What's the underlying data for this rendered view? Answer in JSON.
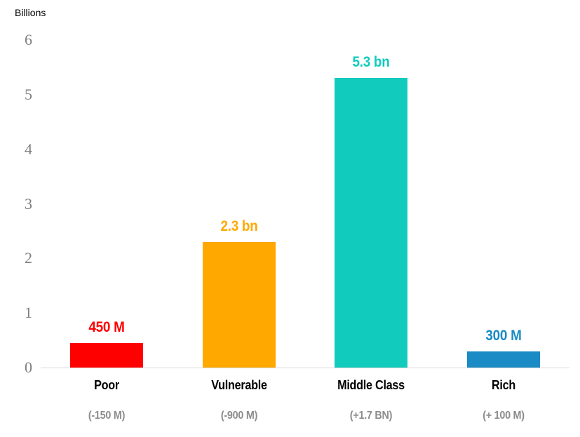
{
  "chart_data": {
    "type": "bar",
    "title": "",
    "ylabel": "Billions",
    "xlabel": "",
    "ylim": [
      0,
      6
    ],
    "yticks": [
      0,
      1,
      2,
      3,
      4,
      5,
      6
    ],
    "grid": false,
    "legend": null,
    "categories": [
      "Poor",
      "Vulnerable",
      "Middle Class",
      "Rich"
    ],
    "values": [
      0.45,
      2.3,
      5.3,
      0.3
    ],
    "value_labels": [
      "450 M",
      "2.3 bn",
      "5.3 bn",
      "300 M"
    ],
    "sub_labels": [
      "(-150 M)",
      "(-900 M)",
      "(+1.7 BN)",
      "(+ 100 M)"
    ],
    "bar_colors": [
      "#FF0000",
      "#FFA800",
      "#11CBBD",
      "#1A8BC4"
    ],
    "label_colors": [
      "#FF0000",
      "#FFA800",
      "#11CBBD",
      "#1A8BC4"
    ],
    "category_color": "#000000",
    "sub_label_color": "#8C8C8C",
    "tick_color": "#7F7F7F",
    "axis_line_color": "#D9D9D9"
  }
}
